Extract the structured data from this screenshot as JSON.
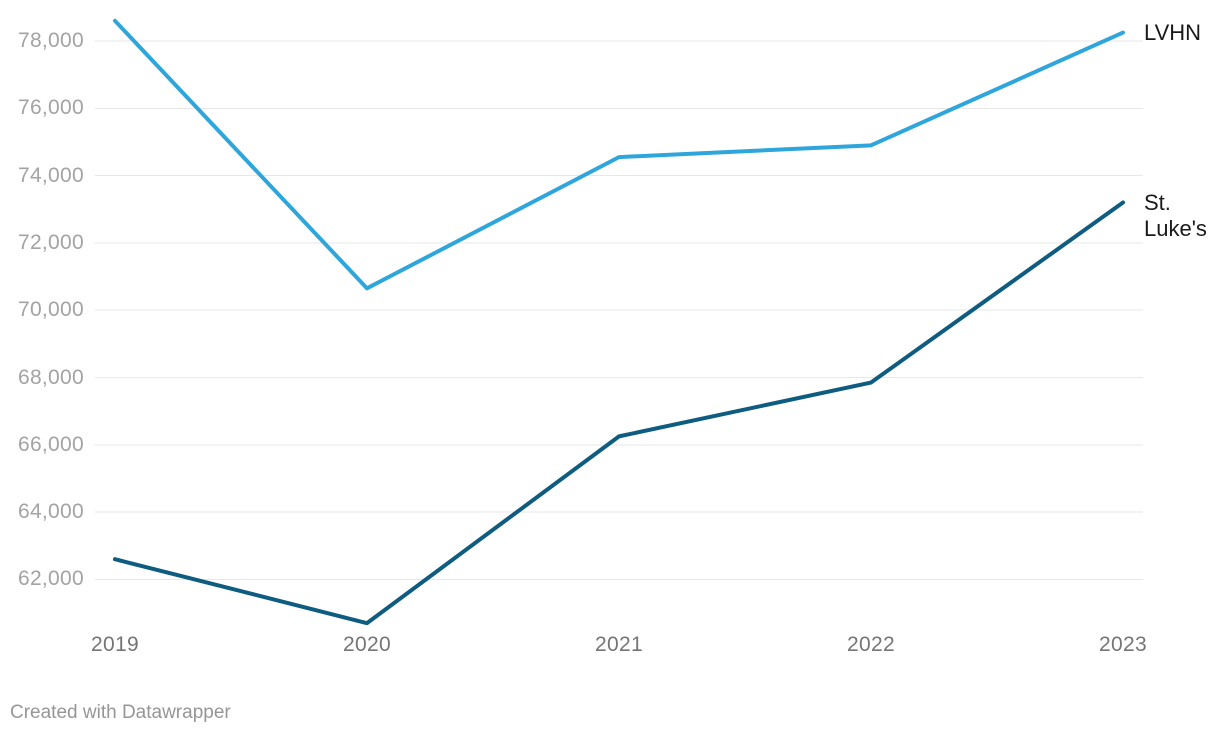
{
  "chart_data": {
    "type": "line",
    "categories": [
      "2019",
      "2020",
      "2021",
      "2022",
      "2023"
    ],
    "series": [
      {
        "name": "LVHN",
        "color": "#2ea6db",
        "values": [
          78600,
          70650,
          74550,
          74900,
          78250
        ]
      },
      {
        "name": "St. Luke's",
        "color": "#0e5c80",
        "values": [
          62600,
          60700,
          66250,
          67850,
          73200
        ]
      }
    ],
    "y_ticks": [
      62000,
      64000,
      66000,
      68000,
      70000,
      72000,
      74000,
      76000,
      78000
    ],
    "ylim": [
      60500,
      79000
    ],
    "grid": true,
    "legend_position": "direct-labels-right"
  },
  "colors": {
    "gridline": "#e7e7e7",
    "y_tick_text": "#a3a3a3",
    "x_tick_text": "#757575",
    "series_label_text": "#1a1a1a",
    "attribution_text": "#969696",
    "background": "#ffffff"
  },
  "footer": {
    "attribution": "Created with Datawrapper"
  }
}
